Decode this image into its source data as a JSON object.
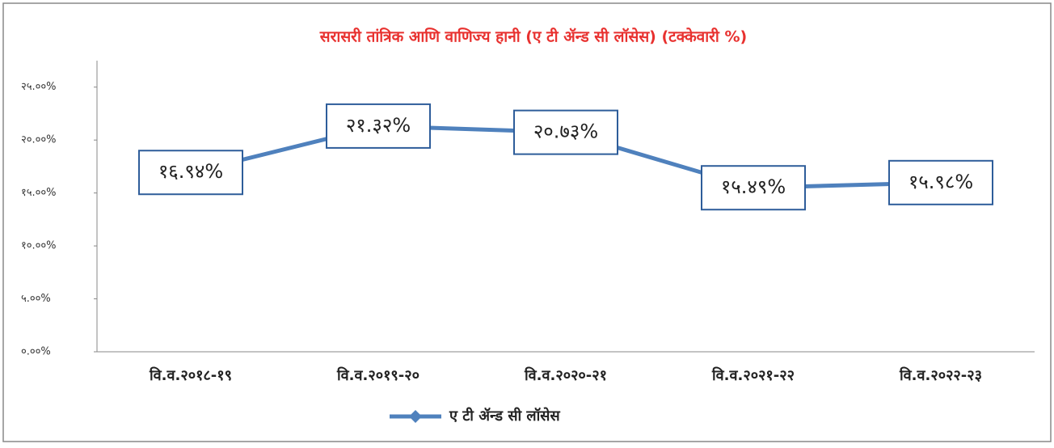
{
  "chart_data": {
    "type": "line",
    "title": "सरासरी तांत्रिक आणि वाणिज्य हानी (ए टी ॲन्ड सी लॉसेस) (टक्केवारी %)",
    "categories": [
      "वि.व.२०१८-१९",
      "वि.व.२०१९-२०",
      "वि.व.२०२०-२१",
      "वि.व.२०२१-२२",
      "वि.व.२०२२-२३"
    ],
    "series": [
      {
        "name": "ए टी ॲन्ड सी लॉसेस",
        "color": "#4f81bd",
        "values": [
          16.94,
          21.32,
          20.73,
          15.49,
          15.98
        ],
        "value_labels": [
          "१६.९४%",
          "२१.३२%",
          "२०.७३%",
          "१५.४९%",
          "१५.९८%"
        ]
      }
    ],
    "ylim": [
      0,
      27.5
    ],
    "yticks": [
      {
        "value": 0,
        "label": "०.००%"
      },
      {
        "value": 5,
        "label": "५.००%"
      },
      {
        "value": 10,
        "label": "१०.००%"
      },
      {
        "value": 15,
        "label": "१५.००%"
      },
      {
        "value": 20,
        "label": "२०.००%"
      },
      {
        "value": 25,
        "label": "२५.००%"
      }
    ],
    "grid": false,
    "legend": "bottom"
  }
}
